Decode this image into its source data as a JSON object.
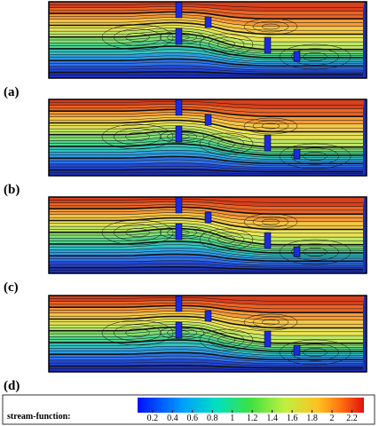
{
  "panels": [
    {
      "label": "(a)"
    },
    {
      "label": "(b)"
    },
    {
      "label": "(c)"
    },
    {
      "label": "(d)"
    }
  ],
  "colorbar": {
    "label": "stream-function:",
    "lim": [
      0.05,
      2.32
    ],
    "ticks": [
      0.2,
      0.4,
      0.6,
      0.8,
      1,
      1.2,
      1.4,
      1.6,
      1.8,
      2,
      2.2
    ]
  }
}
